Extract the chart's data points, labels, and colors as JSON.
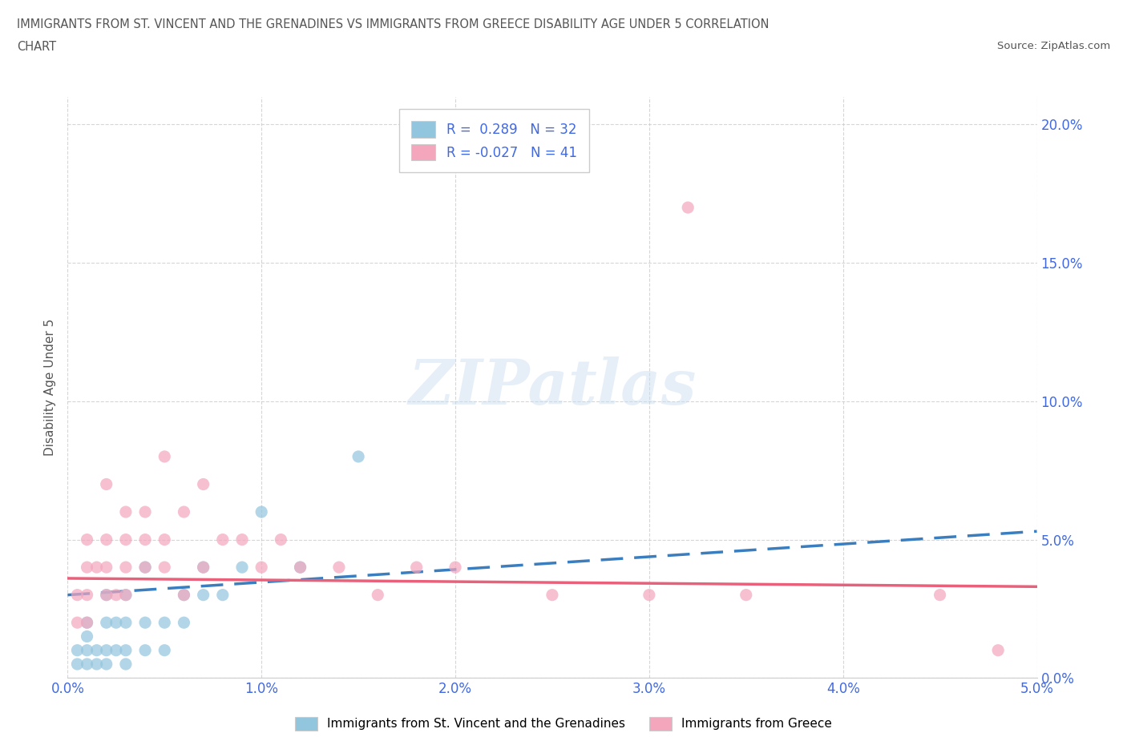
{
  "title_line1": "IMMIGRANTS FROM ST. VINCENT AND THE GRENADINES VS IMMIGRANTS FROM GREECE DISABILITY AGE UNDER 5 CORRELATION",
  "title_line2": "CHART",
  "source_text": "Source: ZipAtlas.com",
  "ylabel": "Disability Age Under 5",
  "xmin": 0.0,
  "xmax": 0.05,
  "ymin": 0.0,
  "ymax": 0.21,
  "ytick_labels": [
    "0.0%",
    "5.0%",
    "10.0%",
    "15.0%",
    "20.0%"
  ],
  "ytick_values": [
    0.0,
    0.05,
    0.1,
    0.15,
    0.2
  ],
  "xtick_labels": [
    "0.0%",
    "1.0%",
    "2.0%",
    "3.0%",
    "4.0%",
    "5.0%"
  ],
  "xtick_values": [
    0.0,
    0.01,
    0.02,
    0.03,
    0.04,
    0.05
  ],
  "legend_r1": "R =  0.289",
  "legend_n1": "N = 32",
  "legend_r2": "R = -0.027",
  "legend_n2": "N = 41",
  "color_blue": "#92c5de",
  "color_pink": "#f4a6bd",
  "line_color_blue": "#3a7ebf",
  "line_color_pink": "#e8607a",
  "watermark": "ZIPatlas",
  "bg_color": "#ffffff",
  "grid_color": "#cccccc",
  "title_color": "#555555",
  "axis_color": "#4169e1",
  "blue_scatter_x": [
    0.0005,
    0.0005,
    0.001,
    0.001,
    0.001,
    0.001,
    0.0015,
    0.0015,
    0.002,
    0.002,
    0.002,
    0.002,
    0.0025,
    0.0025,
    0.003,
    0.003,
    0.003,
    0.003,
    0.004,
    0.004,
    0.004,
    0.005,
    0.005,
    0.006,
    0.006,
    0.007,
    0.007,
    0.008,
    0.009,
    0.01,
    0.012,
    0.015
  ],
  "blue_scatter_y": [
    0.005,
    0.01,
    0.005,
    0.01,
    0.015,
    0.02,
    0.005,
    0.01,
    0.005,
    0.01,
    0.02,
    0.03,
    0.01,
    0.02,
    0.005,
    0.01,
    0.02,
    0.03,
    0.01,
    0.02,
    0.04,
    0.01,
    0.02,
    0.02,
    0.03,
    0.03,
    0.04,
    0.03,
    0.04,
    0.06,
    0.04,
    0.08
  ],
  "pink_scatter_x": [
    0.0005,
    0.0005,
    0.001,
    0.001,
    0.001,
    0.001,
    0.0015,
    0.002,
    0.002,
    0.002,
    0.002,
    0.0025,
    0.003,
    0.003,
    0.003,
    0.003,
    0.004,
    0.004,
    0.004,
    0.005,
    0.005,
    0.005,
    0.006,
    0.006,
    0.007,
    0.007,
    0.008,
    0.009,
    0.01,
    0.011,
    0.012,
    0.014,
    0.016,
    0.018,
    0.02,
    0.025,
    0.03,
    0.032,
    0.035,
    0.045,
    0.048
  ],
  "pink_scatter_y": [
    0.02,
    0.03,
    0.02,
    0.03,
    0.04,
    0.05,
    0.04,
    0.03,
    0.04,
    0.05,
    0.07,
    0.03,
    0.03,
    0.04,
    0.05,
    0.06,
    0.04,
    0.05,
    0.06,
    0.04,
    0.05,
    0.08,
    0.03,
    0.06,
    0.04,
    0.07,
    0.05,
    0.05,
    0.04,
    0.05,
    0.04,
    0.04,
    0.03,
    0.04,
    0.04,
    0.03,
    0.03,
    0.17,
    0.03,
    0.03,
    0.01
  ],
  "blue_trend_x0": 0.0,
  "blue_trend_x1": 0.05,
  "blue_trend_y0": 0.03,
  "blue_trend_y1": 0.053,
  "pink_trend_x0": 0.0,
  "pink_trend_x1": 0.05,
  "pink_trend_y0": 0.036,
  "pink_trend_y1": 0.033,
  "legend1_label": "Immigrants from St. Vincent and the Grenadines",
  "legend2_label": "Immigrants from Greece"
}
